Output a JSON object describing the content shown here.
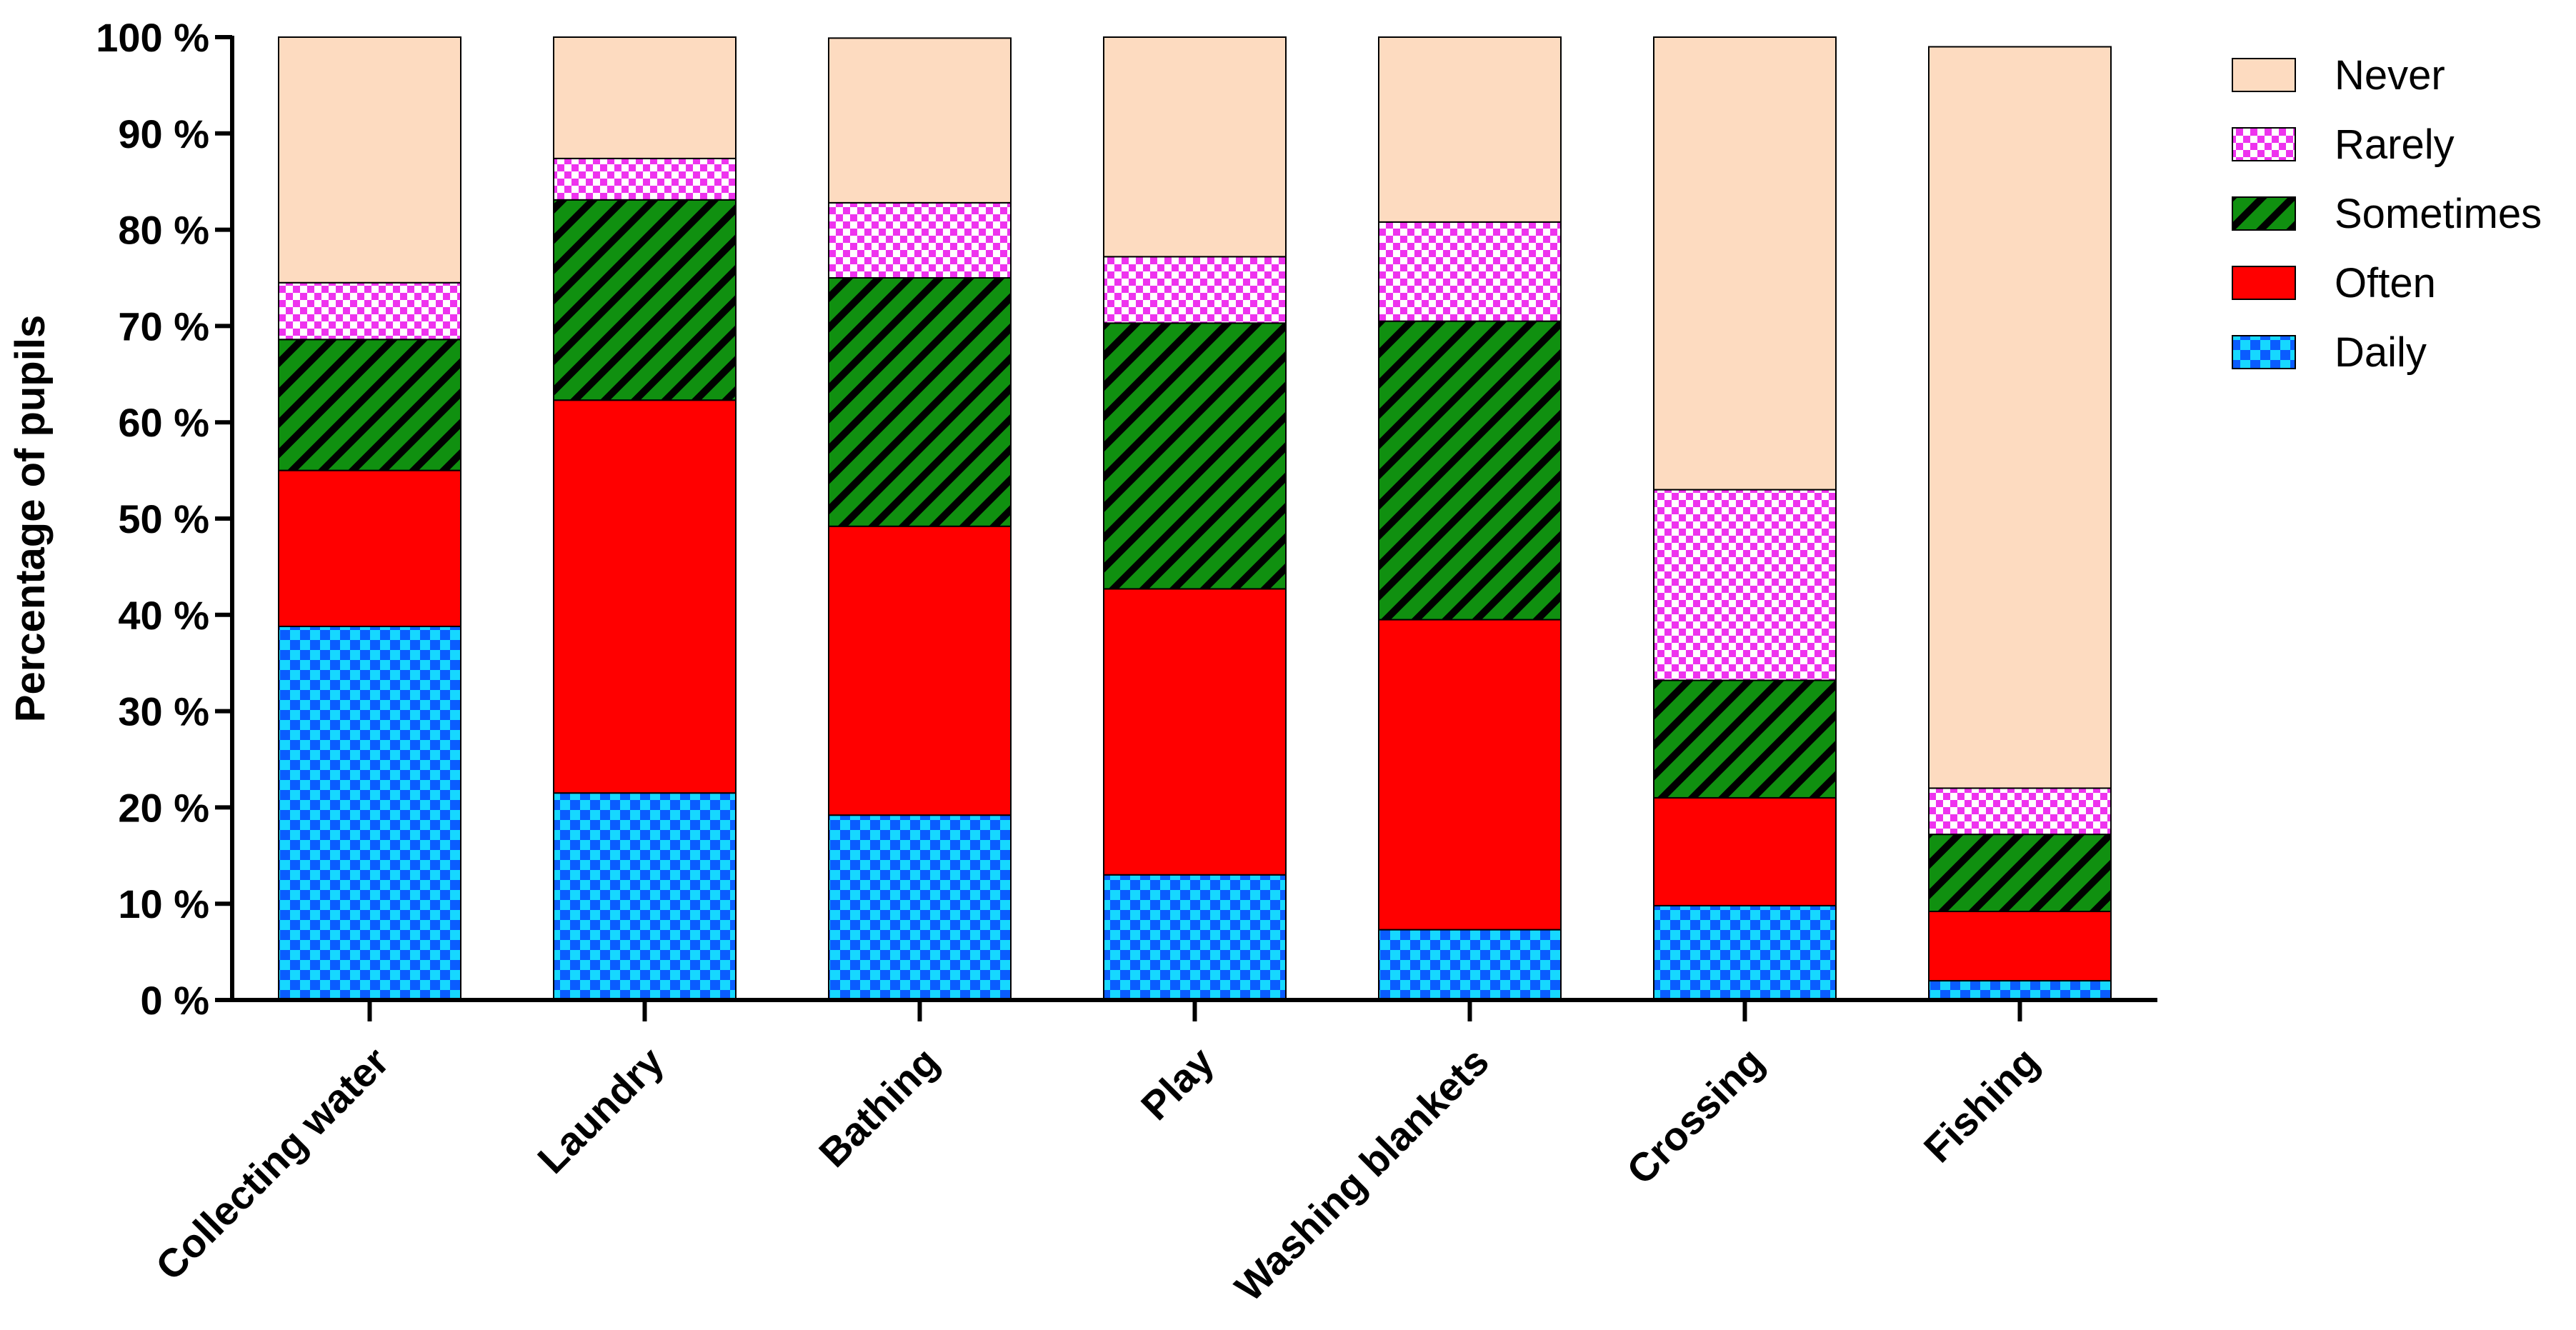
{
  "chart_data": {
    "type": "bar",
    "stacked": true,
    "title": "",
    "xlabel": "",
    "ylabel": "Percentage of pupils",
    "ylim": [
      0,
      100
    ],
    "yticks": [
      "0 %",
      "10 %",
      "20 %",
      "30 %",
      "40 %",
      "50 %",
      "60 %",
      "70 %",
      "80 %",
      "90 %",
      "100 %"
    ],
    "grid": false,
    "legend_position": "top-right",
    "categories": [
      "Collecting water",
      "Laundry",
      "Bathing",
      "Play",
      "Washing blankets",
      "Crossing",
      "Fishing"
    ],
    "series": [
      {
        "name": "Daily",
        "color": "#0a5cff",
        "pattern": "checker-cyan",
        "values": [
          38.8,
          21.5,
          19.2,
          13.0,
          7.3,
          9.8,
          2.0
        ]
      },
      {
        "name": "Often",
        "color": "#ff0000",
        "pattern": "solid",
        "values": [
          16.2,
          40.8,
          30.0,
          29.7,
          32.2,
          11.2,
          7.2
        ]
      },
      {
        "name": "Sometimes",
        "color": "#109010",
        "pattern": "diagonal-black",
        "values": [
          13.6,
          20.8,
          25.8,
          27.6,
          31.0,
          12.2,
          8.0
        ]
      },
      {
        "name": "Rarely",
        "color": "#ee33ee",
        "pattern": "checker-white",
        "values": [
          5.9,
          4.3,
          7.8,
          6.9,
          10.3,
          19.8,
          4.8
        ]
      },
      {
        "name": "Never",
        "color": "#fddbc0",
        "pattern": "solid",
        "values": [
          25.5,
          12.6,
          17.1,
          22.8,
          19.2,
          47.0,
          77.0
        ]
      }
    ],
    "legend_order": [
      "Never",
      "Rarely",
      "Sometimes",
      "Often",
      "Daily"
    ]
  }
}
